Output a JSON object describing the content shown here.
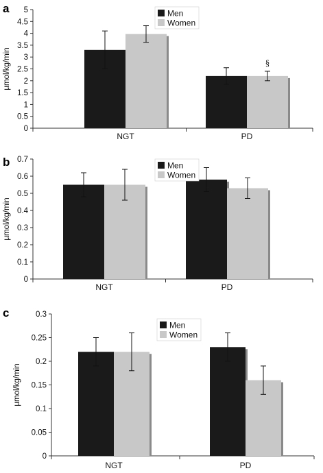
{
  "colors": {
    "men": "#1a1a1a",
    "women": "#c8c8c8",
    "bar_shadow": "#8a8a8a",
    "axis": "#333333"
  },
  "chart_data": [
    {
      "type": "bar",
      "panel_label": "a",
      "categories": [
        "NGT",
        "PD"
      ],
      "ylabel": "µmol/kg/min",
      "ylim": [
        0,
        5
      ],
      "yticks": [
        "0",
        "0.5",
        "1",
        "1.5",
        "2",
        "2.5",
        "3",
        "3.5",
        "4",
        "4.5",
        "5"
      ],
      "ytick_values": [
        0,
        0.5,
        1,
        1.5,
        2,
        2.5,
        3,
        3.5,
        4,
        4.5,
        5
      ],
      "legend": {
        "position": "top-center",
        "entries": [
          "Men",
          "Women"
        ]
      },
      "series": [
        {
          "name": "Men",
          "values": [
            3.3,
            2.2
          ],
          "errors": [
            0.8,
            0.35
          ]
        },
        {
          "name": "Women",
          "values": [
            3.97,
            2.2
          ],
          "errors": [
            0.35,
            0.2
          ]
        }
      ],
      "annotations": [
        {
          "text": "§",
          "category": "PD",
          "series": "Women"
        }
      ]
    },
    {
      "type": "bar",
      "panel_label": "b",
      "categories": [
        "NGT",
        "PD"
      ],
      "ylabel": "µmol/kg/min",
      "ylim": [
        0,
        0.7
      ],
      "yticks": [
        "0",
        "0.1",
        "0.2",
        "0.3",
        "0.4",
        "0.5",
        "0.6",
        "0.7"
      ],
      "ytick_values": [
        0,
        0.1,
        0.2,
        0.3,
        0.4,
        0.5,
        0.6,
        0.7
      ],
      "legend": {
        "position": "top-center",
        "entries": [
          "Men",
          "Women"
        ]
      },
      "series": [
        {
          "name": "Men",
          "values": [
            0.55,
            0.58
          ],
          "errors": [
            0.07,
            0.07
          ]
        },
        {
          "name": "Women",
          "values": [
            0.55,
            0.53
          ],
          "errors": [
            0.09,
            0.06
          ]
        }
      ],
      "annotations": []
    },
    {
      "type": "bar",
      "panel_label": "c",
      "categories": [
        "NGT",
        "PD"
      ],
      "ylabel": "µmol/kg/min",
      "ylim": [
        0,
        0.3
      ],
      "yticks": [
        "0",
        "0.05",
        "0.1",
        "0.15",
        "0.2",
        "0.25",
        "0.3"
      ],
      "ytick_values": [
        0,
        0.05,
        0.1,
        0.15,
        0.2,
        0.25,
        0.3
      ],
      "legend": {
        "position": "top-center",
        "entries": [
          "Men",
          "Women"
        ]
      },
      "series": [
        {
          "name": "Men",
          "values": [
            0.22,
            0.23
          ],
          "errors": [
            0.03,
            0.03
          ]
        },
        {
          "name": "Women",
          "values": [
            0.22,
            0.16
          ],
          "errors": [
            0.04,
            0.03
          ]
        }
      ],
      "annotations": []
    }
  ]
}
